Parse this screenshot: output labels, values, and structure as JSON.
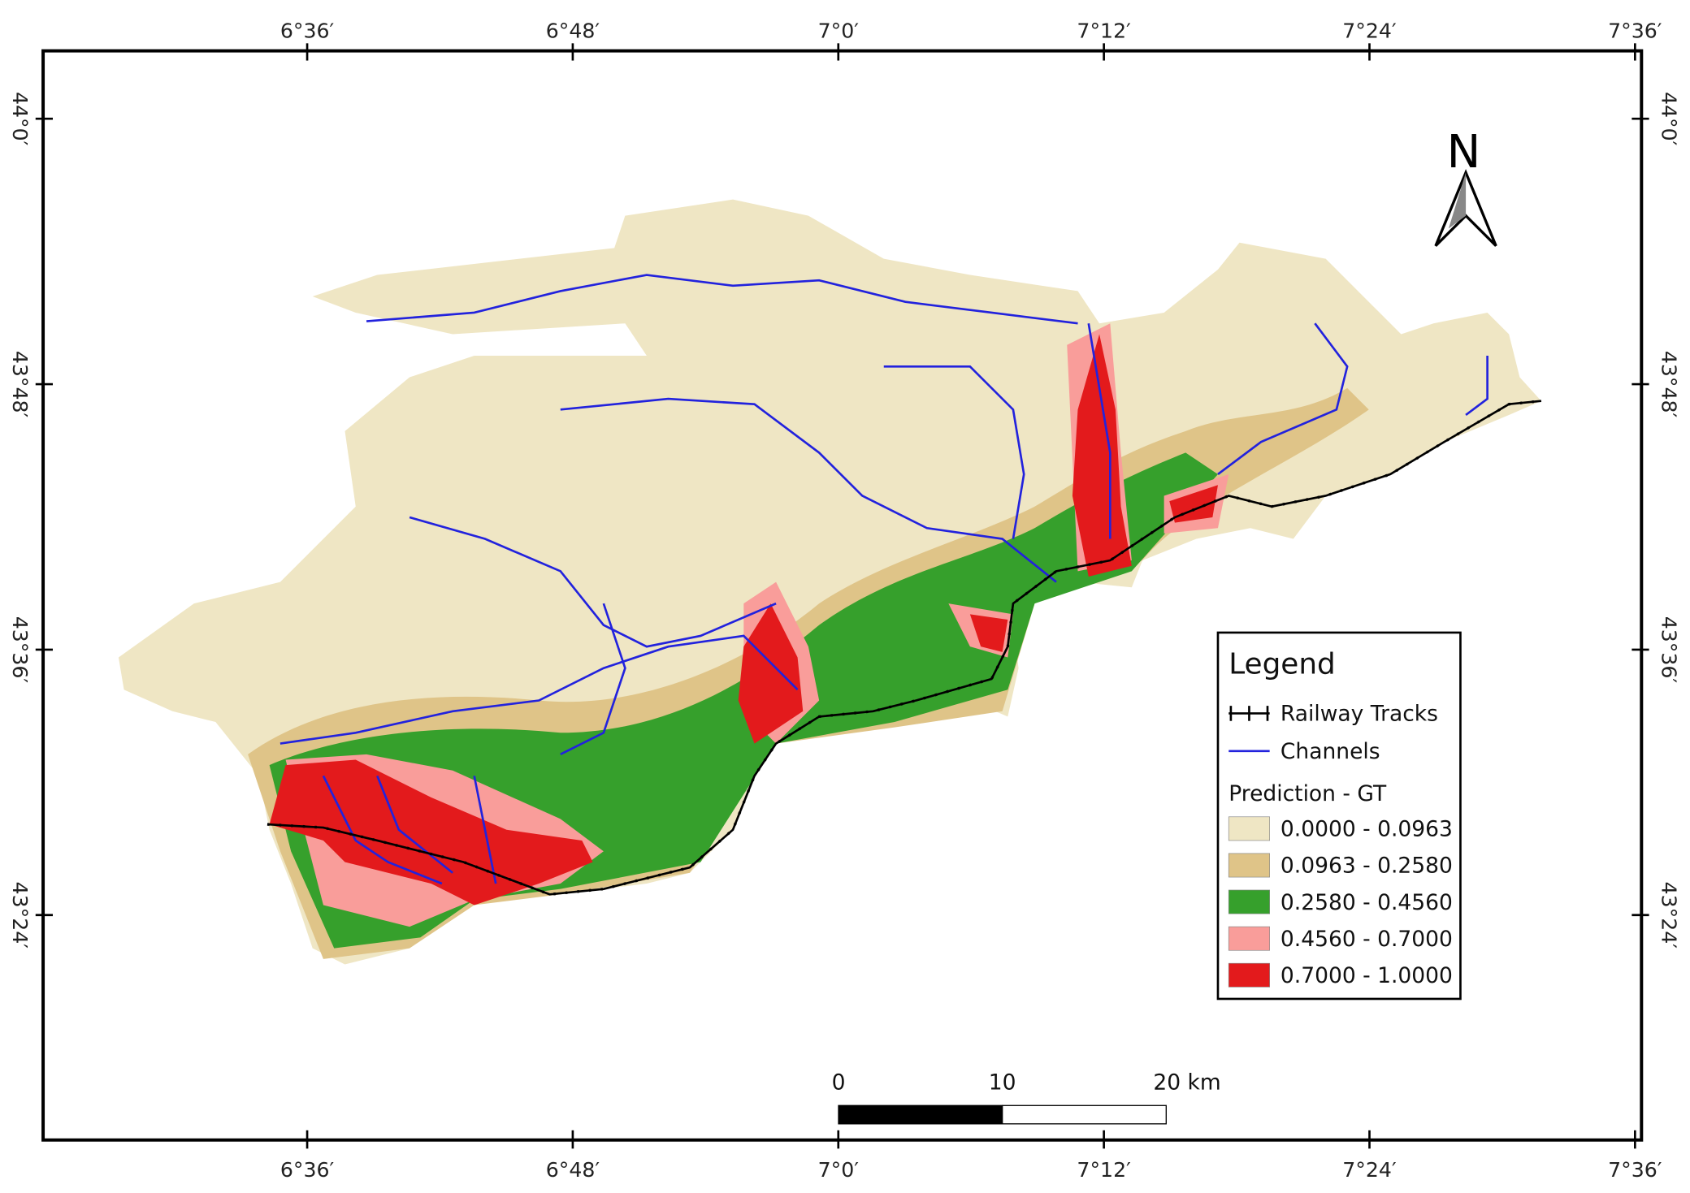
{
  "map": {
    "lon_labels": [
      "6°36′",
      "6°48′",
      "7°0′",
      "7°12′",
      "7°24′",
      "7°36′"
    ],
    "lat_labels": [
      "44°0′",
      "43°48′",
      "43°36′",
      "43°24′"
    ],
    "north": "N",
    "legend": {
      "title": "Legend",
      "items": [
        {
          "label": "Railway Tracks",
          "color": "#000000"
        },
        {
          "label": "Channels",
          "color": "#2222dd"
        }
      ],
      "section": "Prediction - GT",
      "classes": [
        {
          "label": "0.0000 - 0.0963",
          "color": "#efe6c4"
        },
        {
          "label": "0.0963 - 0.2580",
          "color": "#dfc488"
        },
        {
          "label": "0.2580 - 0.4560",
          "color": "#36a02c"
        },
        {
          "label": "0.4560 - 0.7000",
          "color": "#f99d9a"
        },
        {
          "label": "0.7000 - 1.0000",
          "color": "#e31a1c"
        }
      ]
    },
    "scale_bar": {
      "labels": [
        "0",
        "10",
        "20 km"
      ]
    }
  }
}
